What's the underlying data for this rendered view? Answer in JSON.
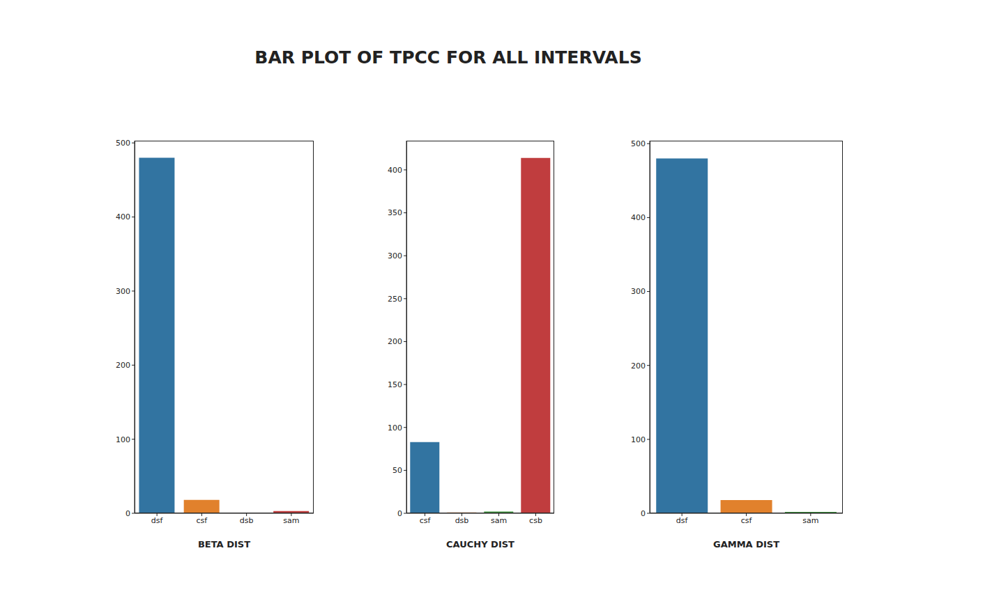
{
  "title": "BAR PLOT OF TPCC FOR ALL INTERVALS",
  "chart_data": [
    {
      "type": "bar",
      "x_label": "BETA DIST",
      "categories": [
        "dsf",
        "csf",
        "dsb",
        "sam"
      ],
      "values": [
        480,
        18,
        1,
        3
      ],
      "colors": [
        "#3274a1",
        "#e1812c",
        "#3a923a",
        "#c03d3e"
      ],
      "ylim": [
        0,
        503
      ],
      "yticks": [
        0,
        100,
        200,
        300,
        400,
        500
      ]
    },
    {
      "type": "bar",
      "x_label": "CAUCHY DIST",
      "categories": [
        "csf",
        "dsb",
        "sam",
        "csb"
      ],
      "values": [
        83,
        1,
        2,
        414
      ],
      "colors": [
        "#3274a1",
        "#e1812c",
        "#3a923a",
        "#c03d3e"
      ],
      "ylim": [
        0,
        434
      ],
      "yticks": [
        0,
        50,
        100,
        150,
        200,
        250,
        300,
        350,
        400
      ]
    },
    {
      "type": "bar",
      "x_label": "GAMMA DIST",
      "categories": [
        "dsf",
        "csf",
        "sam"
      ],
      "values": [
        480,
        18,
        2
      ],
      "colors": [
        "#3274a1",
        "#e1812c",
        "#3a923a"
      ],
      "ylim": [
        0,
        504
      ],
      "yticks": [
        0,
        100,
        200,
        300,
        400,
        500
      ]
    }
  ]
}
